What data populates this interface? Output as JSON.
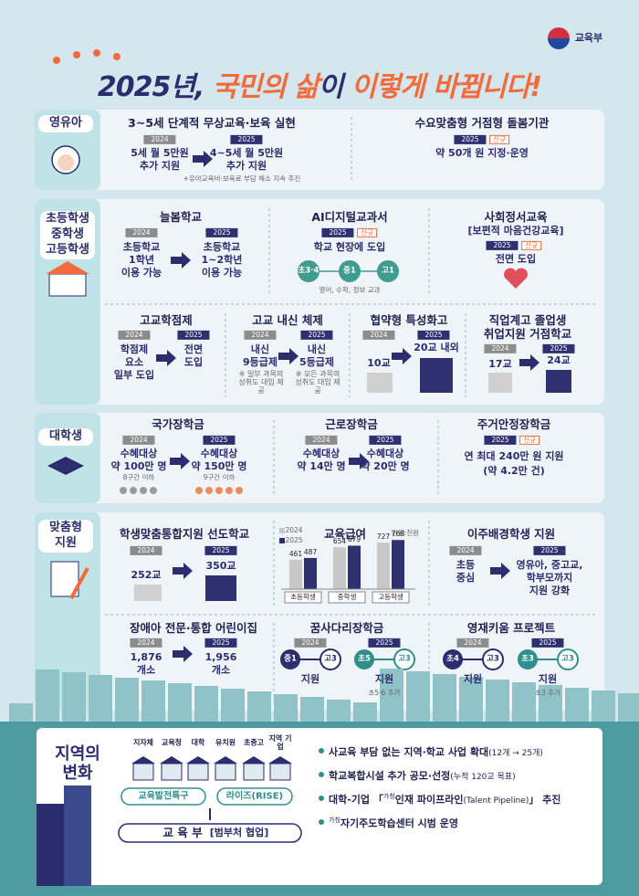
{
  "header": {
    "ministry": "교육부",
    "title": [
      "2025년,",
      "국민의 삶",
      "이",
      "이렇게 바뀝니다!"
    ]
  },
  "sections": [
    {
      "label": [
        "영유아"
      ],
      "items": [
        {
          "title": "3~5세 단계적 무상교육·보육 실현",
          "before": {
            "year": "2024",
            "lines": [
              "5세 월 5만원",
              "추가 지원"
            ]
          },
          "after": {
            "year": "2025",
            "lines": [
              "4~5세 월 5만원",
              "추가 지원"
            ]
          },
          "note": "+유아교육비·보육료 부담 해소 지속 추진"
        },
        {
          "title": "수요맞춤형 거점형 돌봄기관",
          "after": {
            "year": "2025",
            "badge": "신규",
            "lines": [
              "약 50개 원 지정·운영"
            ]
          }
        }
      ]
    },
    {
      "label": [
        "초등학생",
        "중학생",
        "고등학생"
      ],
      "items": [
        {
          "title": "늘봄학교",
          "before": {
            "year": "2024",
            "lines": [
              "초등학교",
              "1학년",
              "이용 가능"
            ]
          },
          "after": {
            "year": "2025",
            "lines": [
              "초등학교",
              "1~2학년",
              "이용 가능"
            ]
          }
        },
        {
          "title": "AI디지털교과서",
          "after": {
            "year": "2025",
            "badge": "신규",
            "lines": [
              "학교 현장에 도입"
            ]
          },
          "grades": [
            "초3·4",
            "중1",
            "고1"
          ],
          "note": "영어, 수학, 정보 교과"
        },
        {
          "title": "사회정서교육",
          "subtitle": "[보편적 마음건강교육]",
          "after": {
            "year": "2025",
            "badge": "신규",
            "lines": [
              "전면 도입"
            ]
          }
        },
        {
          "title": "고교학점제",
          "before": {
            "year": "2024",
            "lines": [
              "학점제",
              "요소",
              "일부 도입"
            ]
          },
          "after": {
            "year": "2025",
            "lines": [
              "전면",
              "도입"
            ]
          }
        },
        {
          "title": "고교 내신 체제",
          "before": {
            "year": "2024",
            "lines": [
              "내신",
              "9등급제"
            ],
            "note": "※ 일부 과목의 성취도 대입 제공"
          },
          "after": {
            "year": "2025",
            "lines": [
              "내신",
              "5등급제"
            ],
            "note": "※ 모든 과목의 성취도 대입 제공"
          }
        },
        {
          "title": "협약형 특성화고",
          "before": {
            "year": "2024",
            "lines": [
              "10교"
            ]
          },
          "after": {
            "year": "2025",
            "lines": [
              "20교 내외"
            ]
          }
        },
        {
          "title_lines": [
            "직업계고 졸업생",
            "취업지원 거점학교"
          ],
          "before": {
            "year": "2024",
            "lines": [
              "17교"
            ]
          },
          "after": {
            "year": "2025",
            "lines": [
              "24교"
            ]
          }
        }
      ]
    },
    {
      "label": [
        "대학생"
      ],
      "items": [
        {
          "title": "국가장학금",
          "before": {
            "year": "2024",
            "lines": [
              "수혜대상",
              "약 100만 명"
            ],
            "note": "8구간 이하"
          },
          "after": {
            "year": "2025",
            "lines": [
              "수혜대상",
              "약 150만 명"
            ],
            "note": "9구간 이하"
          }
        },
        {
          "title": "근로장학금",
          "before": {
            "year": "2024",
            "lines": [
              "수혜대상",
              "약 14만 명"
            ]
          },
          "after": {
            "year": "2025",
            "lines": [
              "수혜대상",
              "약 20만 명"
            ]
          }
        },
        {
          "title": "주거안정장학금",
          "after": {
            "year": "2025",
            "badge": "신규",
            "lines": [
              "연 최대 240만 원 지원",
              "(약 4.2만 건)"
            ]
          }
        }
      ]
    },
    {
      "label": [
        "맞춤형",
        "지원"
      ],
      "items": [
        {
          "title": "학생맞춤통합지원 선도학교",
          "before": {
            "year": "2024",
            "lines": [
              "252교"
            ]
          },
          "after": {
            "year": "2025",
            "lines": [
              "350교"
            ]
          }
        },
        {
          "title": "이주배경학생 지원",
          "before": {
            "year": "2024",
            "lines": [
              "초등",
              "중심"
            ]
          },
          "after": {
            "year": "2025",
            "lines": [
              "영유아, 중고교,",
              "학부모까지",
              "지원 강화"
            ]
          }
        },
        {
          "title": "장애아 전문·통합 어린이집",
          "before": {
            "year": "2024",
            "lines": [
              "1,876",
              "개소"
            ]
          },
          "after": {
            "year": "2025",
            "lines": [
              "1,956",
              "개소"
            ]
          }
        },
        {
          "title": "꿈사다리장학금",
          "before": {
            "year": "2024",
            "range": [
              "중1",
              "고3"
            ],
            "lines": [
              "지원"
            ]
          },
          "after": {
            "year": "2025",
            "range": [
              "초5",
              "고3"
            ],
            "lines": [
              "지원"
            ],
            "note": "초5·6 추가"
          }
        },
        {
          "title": "영재키움 프로젝트",
          "before": {
            "year": "2024",
            "range": [
              "초4",
              "고3"
            ],
            "lines": [
              "지원"
            ]
          },
          "after": {
            "year": "2025",
            "range": [
              "초3",
              "고3"
            ],
            "lines": [
              "지원"
            ],
            "note": "초3 추가"
          }
        }
      ]
    }
  ],
  "chart_data": {
    "type": "bar",
    "title": "교육급여",
    "unit_note": "단위:천원",
    "categories": [
      "초등학생",
      "중학생",
      "고등학생"
    ],
    "series": [
      {
        "name": "2024",
        "color": "#c8c8c8",
        "values": [
          461,
          654,
          727
        ]
      },
      {
        "name": "2025",
        "color": "#2f3070",
        "values": [
          487,
          679,
          768
        ]
      }
    ]
  },
  "region": {
    "title": [
      "지역의",
      "변화"
    ],
    "actors": [
      "지자체",
      "교육청",
      "대학",
      "유치원",
      "초중고",
      "지역 기업"
    ],
    "programs": [
      "교육발전특구",
      "라이즈(RISE)"
    ],
    "ministry": "교 육 부",
    "ministry_note": "[범부처 협업]",
    "bullets": [
      [
        {
          "text": "사교육 부담 없는 지역·학교 사업 확대"
        },
        {
          "text": "(12개 → 25개)",
          "small": true
        }
      ],
      [
        {
          "text": "학교복합시설 추가 공모·선정"
        },
        {
          "text": "(누적 120교 목표)",
          "small": true
        }
      ],
      [
        {
          "text": "대학-기업 「"
        },
        {
          "text": "가칭",
          "sup": true
        },
        {
          "text": "인재 파이프라인"
        },
        {
          "text": "(Talent Pipeline)",
          "small": true
        },
        {
          "text": "」 추진"
        }
      ],
      [
        {
          "text": "가칭",
          "sup": true
        },
        {
          "text": "자기주도학습센터 시범 운영"
        }
      ]
    ]
  }
}
